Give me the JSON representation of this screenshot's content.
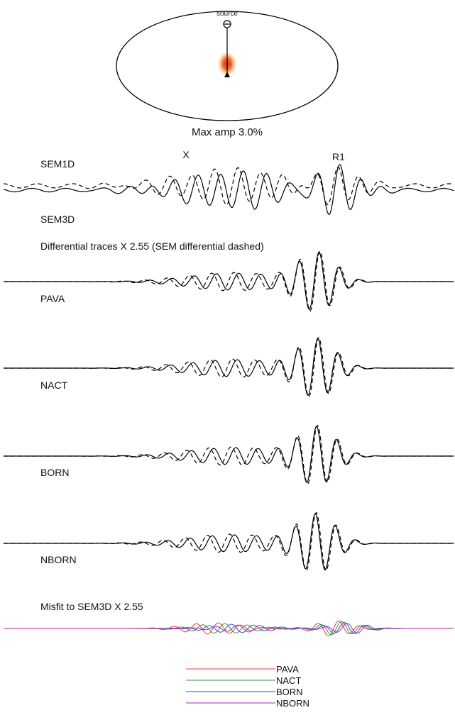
{
  "map": {
    "source_label": "source",
    "max_amp_label": "Max amp 3.0%"
  },
  "top_panel": {
    "label_sem1d": "SEM1D",
    "label_sem3d": "SEM3D",
    "phase_x": "X",
    "phase_r1": "R1"
  },
  "differential": {
    "caption": "Differential traces X 2.55 (SEM differential dashed)",
    "panels": [
      "PAVA",
      "NACT",
      "BORN",
      "NBORN"
    ]
  },
  "misfit": {
    "caption": "Misfit to SEM3D X 2.55"
  },
  "legend": [
    {
      "label": "PAVA",
      "color": "#e83a3a"
    },
    {
      "label": "NACT",
      "color": "#2e9e3a"
    },
    {
      "label": "BORN",
      "color": "#3a4ad8"
    },
    {
      "label": "NBORN",
      "color": "#a02a9e"
    }
  ]
}
